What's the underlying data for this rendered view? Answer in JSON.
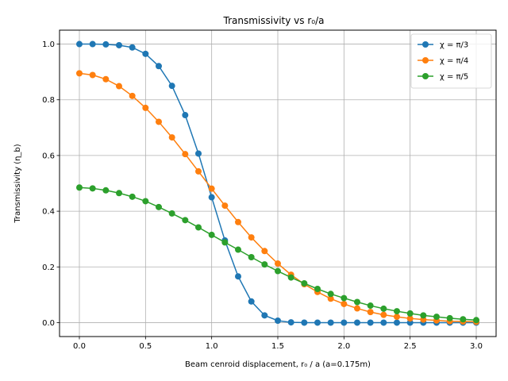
{
  "chart_data": {
    "type": "line",
    "title": "Transmissivity vs r₀/a",
    "xlabel": "Beam cenroid displacement,  r₀ / a (a=0.175m)",
    "ylabel": "Transmissivity (η_b)",
    "xlim": [
      -0.15,
      3.15
    ],
    "ylim": [
      -0.05,
      1.05
    ],
    "xticks": [
      0.0,
      0.5,
      1.0,
      1.5,
      2.0,
      2.5,
      3.0
    ],
    "xtick_labels": [
      "0.0",
      "0.5",
      "1.0",
      "1.5",
      "2.0",
      "2.5",
      "3.0"
    ],
    "yticks": [
      0.0,
      0.2,
      0.4,
      0.6,
      0.8,
      1.0
    ],
    "ytick_labels": [
      "0.0",
      "0.2",
      "0.4",
      "0.6",
      "0.8",
      "1.0"
    ],
    "grid": true,
    "legend_position": "top-right",
    "x": [
      0.0,
      0.1,
      0.2,
      0.3,
      0.4,
      0.5,
      0.6,
      0.7,
      0.8,
      0.9,
      1.0,
      1.1,
      1.2,
      1.3,
      1.4,
      1.5,
      1.6,
      1.7,
      1.8,
      1.9,
      2.0,
      2.1,
      2.2,
      2.3,
      2.4,
      2.5,
      2.6,
      2.7,
      2.8,
      2.9,
      3.0
    ],
    "series": [
      {
        "name": "χ = π/3",
        "color": "#1f77b4",
        "values": [
          1.0,
          1.0,
          0.999,
          0.996,
          0.988,
          0.965,
          0.921,
          0.85,
          0.745,
          0.607,
          0.45,
          0.295,
          0.166,
          0.076,
          0.026,
          0.007,
          0.001,
          0.0,
          0.0,
          0.0,
          0.0,
          0.0,
          0.0,
          0.0,
          0.0,
          0.0,
          0.0,
          0.0,
          0.0,
          0.0,
          0.0
        ]
      },
      {
        "name": "χ = π/4",
        "color": "#ff7f0e",
        "values": [
          0.895,
          0.889,
          0.874,
          0.849,
          0.814,
          0.771,
          0.721,
          0.665,
          0.605,
          0.543,
          0.481,
          0.42,
          0.361,
          0.306,
          0.257,
          0.212,
          0.172,
          0.138,
          0.11,
          0.086,
          0.067,
          0.051,
          0.038,
          0.028,
          0.021,
          0.015,
          0.011,
          0.008,
          0.005,
          0.004,
          0.003
        ]
      },
      {
        "name": "χ = π/5",
        "color": "#2ca02c",
        "values": [
          0.485,
          0.482,
          0.475,
          0.465,
          0.452,
          0.436,
          0.415,
          0.392,
          0.368,
          0.342,
          0.315,
          0.288,
          0.262,
          0.235,
          0.209,
          0.185,
          0.162,
          0.141,
          0.121,
          0.103,
          0.088,
          0.074,
          0.061,
          0.05,
          0.041,
          0.033,
          0.026,
          0.021,
          0.016,
          0.012,
          0.009
        ]
      }
    ]
  }
}
